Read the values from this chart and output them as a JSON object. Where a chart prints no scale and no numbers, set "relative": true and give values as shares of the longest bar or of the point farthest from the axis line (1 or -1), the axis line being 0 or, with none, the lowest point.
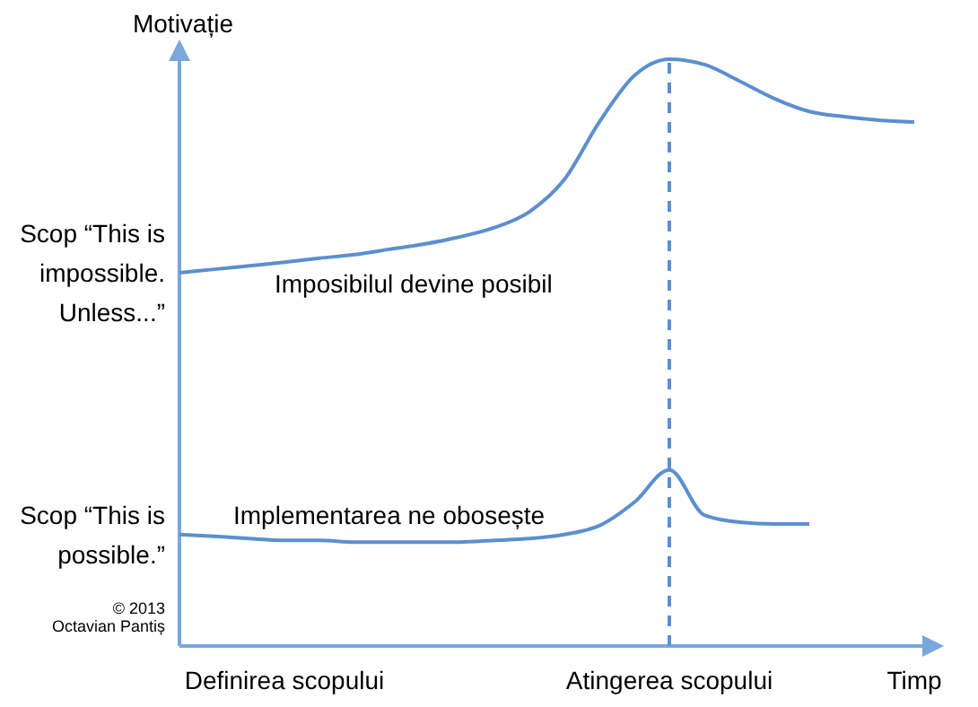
{
  "chart_data": {
    "type": "line",
    "relative": true,
    "ylabel": "Motivație",
    "categories": [
      null,
      null,
      null,
      "Definirea scopului",
      null,
      null,
      null,
      null,
      null,
      null,
      null,
      null,
      null,
      null,
      "Atingerea scopului",
      null,
      null,
      null,
      null,
      null,
      null,
      "Timp"
    ],
    "series": [
      {
        "name": "Scop “This is impossible. Unless...”",
        "color": "#5b8fcf",
        "values": [
          0.636,
          0.642,
          0.648,
          0.654,
          0.661,
          0.667,
          0.676,
          0.685,
          0.697,
          0.713,
          0.74,
          0.795,
          0.893,
          0.972,
          1,
          0.991,
          0.963,
          0.933,
          0.911,
          0.902,
          0.896,
          0.893
        ]
      },
      {
        "name": "Scop “This is possible.”",
        "color": "#5b8fcf",
        "values": [
          0.19,
          0.187,
          0.183,
          0.18,
          0.18,
          0.177,
          0.177,
          0.177,
          0.177,
          0.18,
          0.183,
          0.19,
          0.205,
          0.245,
          0.3,
          0.223,
          0.211,
          0.208,
          0.208,
          null,
          null,
          null
        ]
      }
    ],
    "ref_lines": [
      {
        "axis": "x",
        "value": "Atingerea scopului",
        "line_style": "dashed",
        "color": "#5b8fcf"
      }
    ],
    "annotations": [
      "Imposibilul devine posibil",
      "Implementarea ne obosește",
      "© 2013\nOctavian Pantiș"
    ],
    "grid": false,
    "marker": "none",
    "line_style": "solid"
  }
}
